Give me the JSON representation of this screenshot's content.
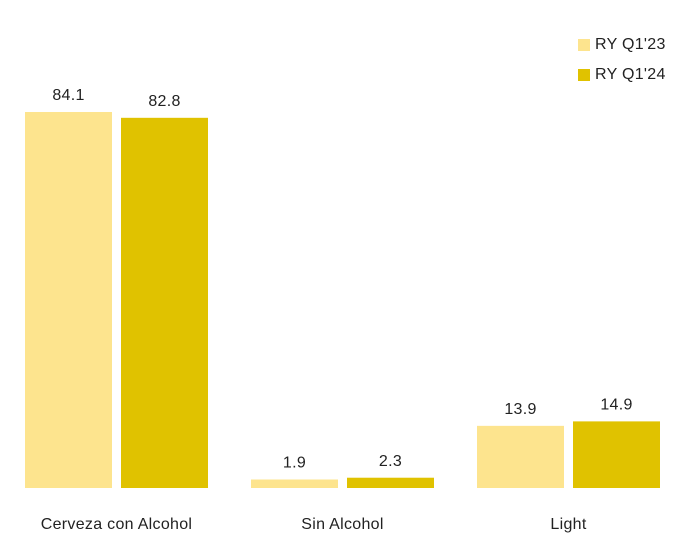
{
  "chart_data": {
    "type": "bar",
    "categories": [
      "Cerveza con Alcohol",
      "Sin Alcohol",
      "Light"
    ],
    "series": [
      {
        "name": "RY Q1'23",
        "color": "#fde48e",
        "values": [
          84.1,
          1.9,
          13.9
        ]
      },
      {
        "name": "RY Q1'24",
        "color": "#e0c200",
        "values": [
          82.8,
          2.3,
          14.9
        ]
      }
    ],
    "legend": "top-right"
  }
}
